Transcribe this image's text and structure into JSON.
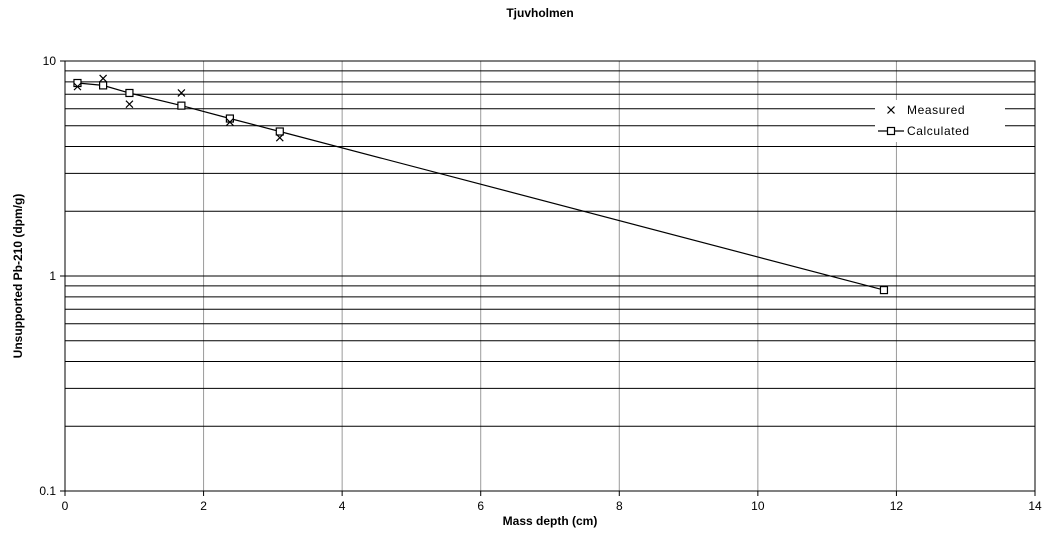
{
  "chart_data": {
    "type": "scatter",
    "title": "Tjuvholmen",
    "xlabel": "Mass depth (cm)",
    "ylabel": "Unsupported Pb-210 (dpm/g)",
    "xlim": [
      0,
      14
    ],
    "ylim": [
      0.1,
      10
    ],
    "yscale": "log",
    "x_ticks": [
      "0",
      "2",
      "4",
      "6",
      "8",
      "10",
      "12",
      "14"
    ],
    "y_ticks": [
      "0.1",
      "1",
      "10"
    ],
    "grid": true,
    "legend_position": "right",
    "series": [
      {
        "name": "Measured",
        "marker": "x",
        "line": false,
        "color": "#000000",
        "x": [
          0.18,
          0.55,
          0.93,
          1.68,
          2.38,
          3.1
        ],
        "y": [
          7.6,
          8.3,
          6.3,
          7.1,
          5.2,
          4.4
        ]
      },
      {
        "name": "Calculated",
        "marker": "open-square",
        "line": true,
        "color": "#000000",
        "x": [
          0.18,
          0.55,
          0.93,
          1.68,
          2.38,
          3.1,
          11.82
        ],
        "y": [
          7.9,
          7.7,
          7.1,
          6.2,
          5.4,
          4.7,
          0.86
        ]
      }
    ]
  }
}
